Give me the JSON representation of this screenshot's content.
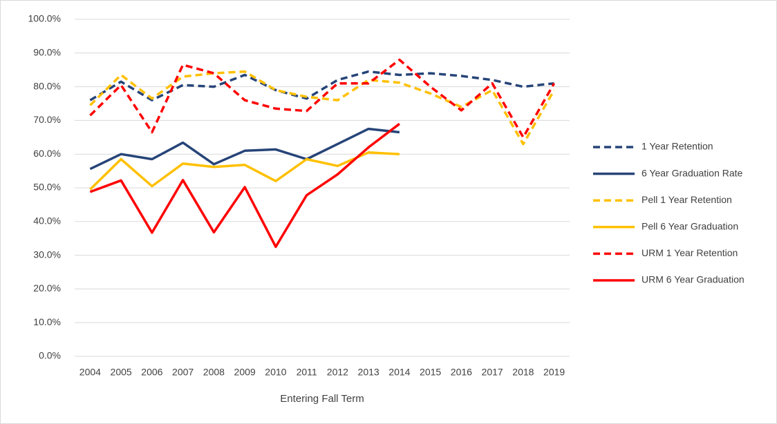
{
  "chart_data": {
    "type": "line",
    "x_label": "Entering Fall Term",
    "categories": [
      "2004",
      "2005",
      "2006",
      "2007",
      "2008",
      "2009",
      "2010",
      "2011",
      "2012",
      "2013",
      "2014",
      "2015",
      "2016",
      "2017",
      "2018",
      "2019"
    ],
    "ylim": [
      0,
      100
    ],
    "yticks": [
      {
        "value": 0,
        "label": "0.0%"
      },
      {
        "value": 10,
        "label": "10.0%"
      },
      {
        "value": 20,
        "label": "20.0%"
      },
      {
        "value": 30,
        "label": "30.0%"
      },
      {
        "value": 40,
        "label": "40.0%"
      },
      {
        "value": 50,
        "label": "50.0%"
      },
      {
        "value": 60,
        "label": "60.0%"
      },
      {
        "value": 70,
        "label": "70.0%"
      },
      {
        "value": 80,
        "label": "80.0%"
      },
      {
        "value": 90,
        "label": "90.0%"
      },
      {
        "value": 100,
        "label": "100.0%"
      }
    ],
    "grid": true,
    "legend": "right",
    "series": [
      {
        "name": "1 Year Retention",
        "color": "#264478",
        "style": "dashed",
        "values": [
          76,
          81.5,
          76,
          80.5,
          80,
          83.5,
          79,
          76.5,
          82,
          84.5,
          83.5,
          84,
          83.2,
          82,
          80,
          81
        ]
      },
      {
        "name": "6 Year Graduation Rate",
        "color": "#264478",
        "style": "solid",
        "values": [
          55.6,
          60,
          58.5,
          63.4,
          57,
          61,
          61.4,
          58.5,
          63,
          67.5,
          66.5,
          null,
          null,
          null,
          null,
          null
        ]
      },
      {
        "name": "Pell 1 Year Retention",
        "color": "#ffc000",
        "style": "dashed",
        "values": [
          74.5,
          83.5,
          76.5,
          83,
          84,
          84.5,
          79,
          77,
          76,
          82,
          81.2,
          78,
          74,
          79,
          63,
          79
        ]
      },
      {
        "name": "Pell 6 Year Graduation",
        "color": "#ffc000",
        "style": "solid",
        "values": [
          49.5,
          58.5,
          50.5,
          57.2,
          56.2,
          56.8,
          52,
          58.5,
          56.5,
          60.5,
          60,
          null,
          null,
          null,
          null,
          null
        ]
      },
      {
        "name": "URM 1 Year Retention",
        "color": "#ff0000",
        "style": "dashed",
        "values": [
          71.5,
          80.5,
          66.5,
          86.5,
          84,
          76,
          73.5,
          72.8,
          81,
          81,
          88,
          80,
          73,
          81,
          65,
          81
        ]
      },
      {
        "name": "URM 6 Year Graduation",
        "color": "#ff0000",
        "style": "solid",
        "values": [
          48.8,
          52.2,
          36.7,
          52.3,
          36.8,
          50.2,
          32.5,
          47.8,
          54,
          62,
          69,
          null,
          null,
          null,
          null,
          null
        ]
      }
    ]
  }
}
